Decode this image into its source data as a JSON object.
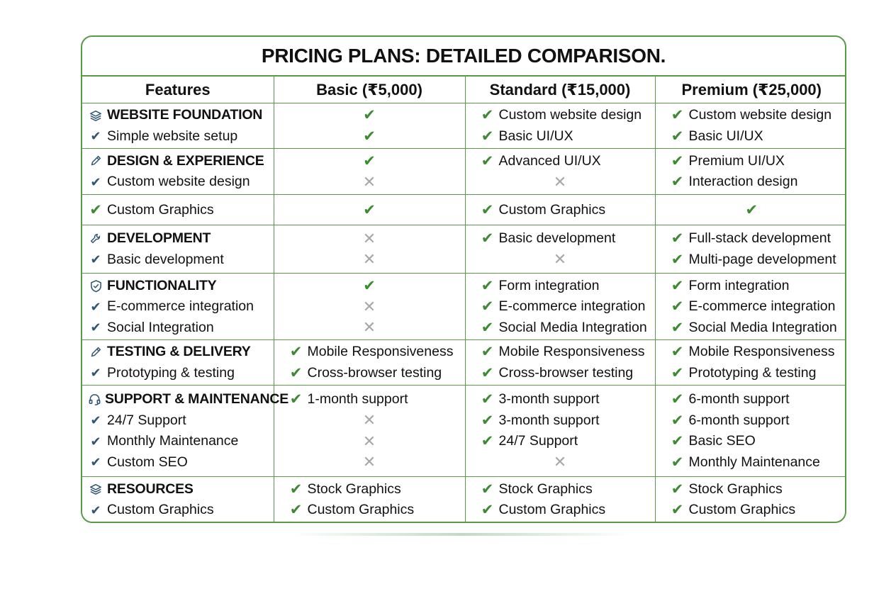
{
  "title": "PRICING PLANS: DETAILED COMPARISON.",
  "accent_color": "#5a9a47",
  "check_color": "#3e8a33",
  "cross_color": "#a7a7a7",
  "headers": [
    "Features",
    "Basic (₹5,000)",
    "Standard (₹15,000)",
    "Premium (₹25,000)"
  ],
  "sections": [
    {
      "icon": "layers-icon",
      "heading": "WEBSITE FOUNDATION",
      "features": [
        "Simple website setup"
      ],
      "basic": [
        {
          "v": "check"
        },
        {
          "v": "check"
        }
      ],
      "standard": [
        {
          "text": "Custom website design"
        },
        {
          "text": "Basic UI/UX"
        }
      ],
      "premium": [
        {
          "text": "Custom website design"
        },
        {
          "text": "Basic UI/UX"
        }
      ]
    },
    {
      "icon": "pen-icon",
      "heading": "DESIGN & EXPERIENCE",
      "features": [
        "Custom website design"
      ],
      "basic": [
        {
          "v": "check"
        },
        {
          "v": "cross"
        }
      ],
      "standard": [
        {
          "text": "Advanced UI/UX"
        },
        {
          "v": "cross"
        }
      ],
      "premium": [
        {
          "text": "Premium UI/UX"
        },
        {
          "text": "Interaction design"
        }
      ]
    },
    {
      "icon": "",
      "heading": "",
      "features": [
        {
          "text": "Custom Graphics",
          "green": true
        }
      ],
      "basic": [
        {
          "v": "check"
        }
      ],
      "standard": [
        {
          "text": "Custom Graphics"
        }
      ],
      "premium": [
        {
          "v": "check"
        }
      ]
    },
    {
      "icon": "wrench-icon",
      "heading": "DEVELOPMENT",
      "features": [
        "Basic development"
      ],
      "basic": [
        {
          "v": "cross"
        },
        {
          "v": "cross"
        }
      ],
      "standard": [
        {
          "text": "Basic development"
        },
        {
          "v": "cross"
        }
      ],
      "premium": [
        {
          "text": "Full-stack development"
        },
        {
          "text": "Multi-page development"
        }
      ]
    },
    {
      "icon": "shield-check-icon",
      "heading": "FUNCTIONALITY",
      "features": [
        "E-commerce integration",
        "Social Integration"
      ],
      "basic": [
        {
          "v": "check"
        },
        {
          "v": "cross"
        },
        {
          "v": "cross"
        }
      ],
      "standard": [
        {
          "text": "Form integration"
        },
        {
          "text": "E-commerce integration"
        },
        {
          "text": "Social Media Integration"
        }
      ],
      "premium": [
        {
          "text": "Form integration"
        },
        {
          "text": "E-commerce integration"
        },
        {
          "text": "Social Media Integration"
        }
      ]
    },
    {
      "icon": "pen-icon",
      "heading": "TESTING & DELIVERY",
      "features": [
        "Prototyping & testing"
      ],
      "basic": [
        {
          "text": "Mobile Responsiveness"
        },
        {
          "text": "Cross-browser testing"
        }
      ],
      "standard": [
        {
          "text": "Mobile Responsiveness"
        },
        {
          "text": "Cross-browser testing"
        }
      ],
      "premium": [
        {
          "text": "Mobile Responsiveness"
        },
        {
          "text": "Prototyping & testing"
        }
      ]
    },
    {
      "icon": "headset-icon",
      "heading": "SUPPORT & MAINTENANCE",
      "features": [
        "24/7 Support",
        "Monthly Maintenance",
        "Custom SEO"
      ],
      "basic": [
        {
          "text": "1-month support"
        },
        {
          "v": "cross"
        },
        {
          "v": "cross"
        },
        {
          "v": "cross"
        }
      ],
      "standard": [
        {
          "text": "3-month support"
        },
        {
          "text": "3-month support"
        },
        {
          "text": "24/7 Support"
        },
        {
          "v": "cross"
        }
      ],
      "premium": [
        {
          "text": "6-month support"
        },
        {
          "text": "6-month support"
        },
        {
          "text": "Basic SEO"
        },
        {
          "text": "Monthly Maintenance"
        }
      ]
    },
    {
      "icon": "layers-icon",
      "heading": "RESOURCES",
      "features": [
        "Custom Graphics"
      ],
      "basic": [
        {
          "text": "Stock Graphics"
        },
        {
          "text": "Custom Graphics"
        }
      ],
      "standard": [
        {
          "text": "Stock Graphics"
        },
        {
          "text": "Custom Graphics"
        }
      ],
      "premium": [
        {
          "text": "Stock Graphics"
        },
        {
          "text": "Custom Graphics"
        }
      ]
    }
  ]
}
